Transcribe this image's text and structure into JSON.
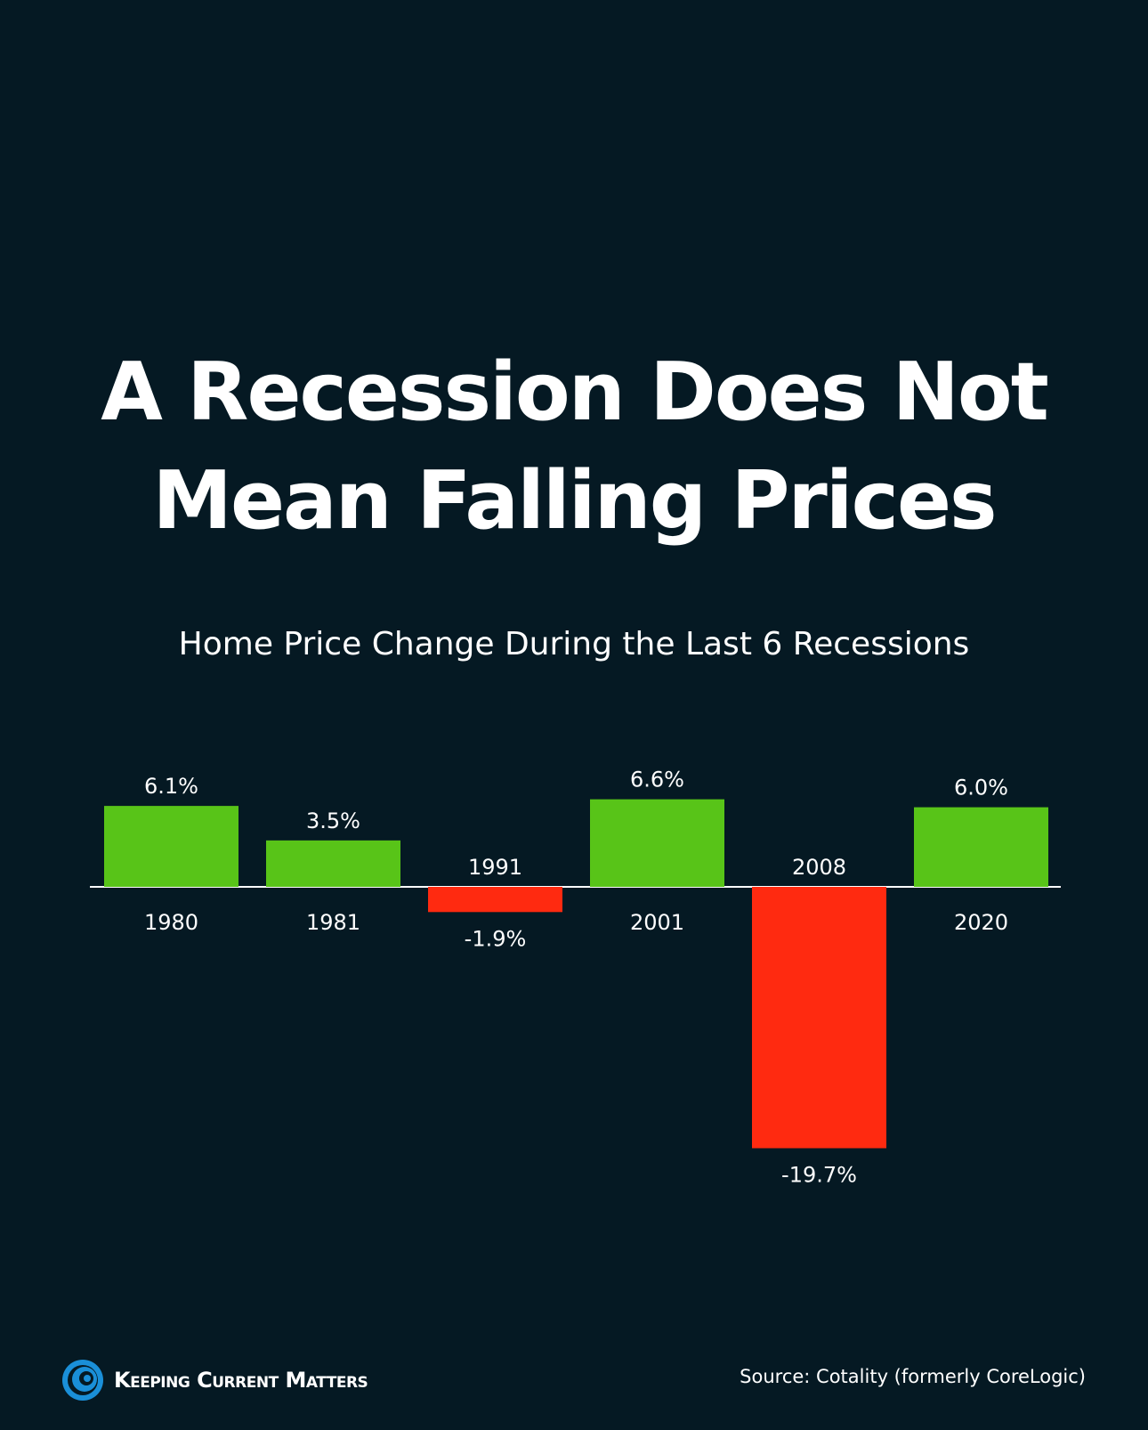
{
  "title_line1": "A Recession Does Not",
  "title_line2": "Mean Falling Prices",
  "footer": {
    "brand": "Keeping Current Matters",
    "source": "Source: Cotality (formerly CoreLogic)"
  },
  "colors": {
    "background": "#051923",
    "positive": "#58c418",
    "negative": "#ff2a10",
    "text": "#ffffff",
    "logo_blue": "#1a8fd8"
  },
  "chart_data": {
    "type": "bar",
    "title": "Home Price Change During the Last 6 Recessions",
    "categories": [
      "1980",
      "1981",
      "1991",
      "2001",
      "2008",
      "2020"
    ],
    "values": [
      6.1,
      3.5,
      -1.9,
      6.6,
      -19.7,
      6.0
    ],
    "value_labels": [
      "6.1%",
      "3.5%",
      "-1.9%",
      "6.6%",
      "-19.7%",
      "6.0%"
    ],
    "xlabel": "",
    "ylabel": "",
    "grid": false,
    "legend": "none"
  }
}
